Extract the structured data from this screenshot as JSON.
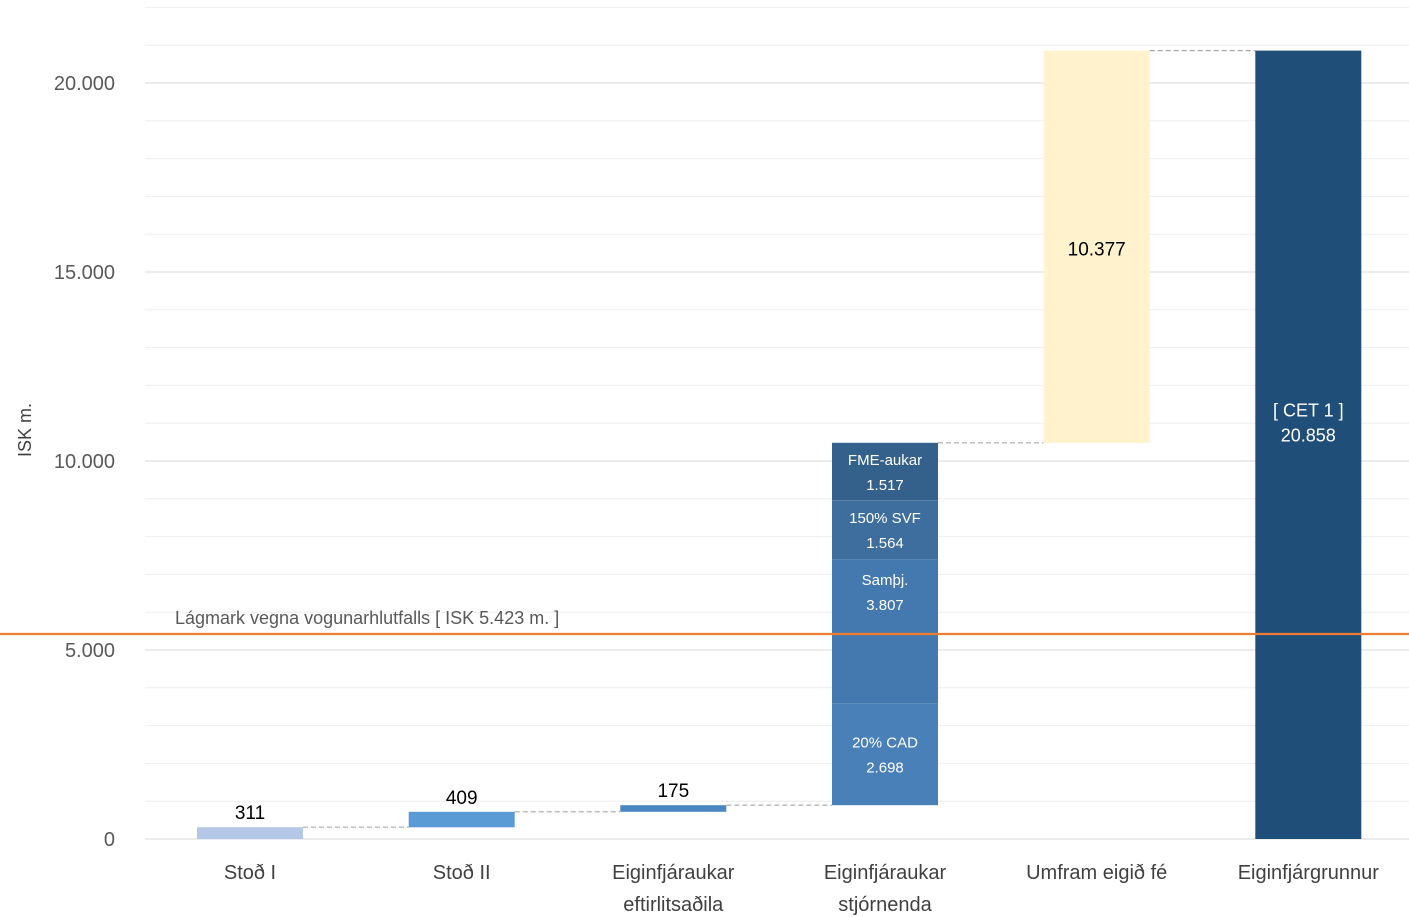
{
  "chart_data": {
    "type": "bar",
    "subtype": "waterfall-stacked",
    "title": "",
    "xlabel": "",
    "ylabel": "ISK m.",
    "ylim": [
      0,
      22000
    ],
    "yticks": [
      0,
      5000,
      10000,
      15000,
      20000
    ],
    "ytick_labels": [
      "0",
      "5.000",
      "10.000",
      "15.000",
      "20.000"
    ],
    "grid": {
      "major": true,
      "minor": true
    },
    "categories": [
      {
        "lines": [
          "Stoð I"
        ]
      },
      {
        "lines": [
          "Stoð II"
        ]
      },
      {
        "lines": [
          "Eiginfjáraukar",
          "eftirlitsaðila"
        ]
      },
      {
        "lines": [
          "Eiginfjáraukar",
          "stjórnenda"
        ]
      },
      {
        "lines": [
          "Umfram eigið fé"
        ]
      },
      {
        "lines": [
          "Eiginfjárgrunnur"
        ]
      }
    ],
    "bars": [
      {
        "category_index": 0,
        "base": 0,
        "segments": [
          {
            "value": 311,
            "color": "#B4C7E7",
            "label_lines": [
              "311"
            ],
            "label_position": "above"
          }
        ]
      },
      {
        "category_index": 1,
        "base": 311,
        "segments": [
          {
            "value": 409,
            "color": "#5B9BD5",
            "label_lines": [
              "409"
            ],
            "label_position": "above"
          }
        ]
      },
      {
        "category_index": 2,
        "base": 720,
        "segments": [
          {
            "value": 175,
            "color": "#4A86C1",
            "label_lines": [
              "175"
            ],
            "label_position": "above"
          }
        ]
      },
      {
        "category_index": 3,
        "base": 895,
        "segments": [
          {
            "value": 2698,
            "color": "#4A80B8",
            "label_lines": [
              "20% CAD",
              "2.698"
            ],
            "label_position": "inside"
          },
          {
            "value": 3807,
            "color": "#4479AF",
            "label_lines": [
              "Samþj.",
              "3.807"
            ],
            "label_position": "inside-top"
          },
          {
            "value": 1564,
            "color": "#3D6E9E",
            "label_lines": [
              "150% SVF",
              "1.564"
            ],
            "label_position": "inside"
          },
          {
            "value": 1517,
            "color": "#34618C",
            "label_lines": [
              "FME-aukar",
              "1.517"
            ],
            "label_position": "inside"
          }
        ]
      },
      {
        "category_index": 4,
        "base": 10481,
        "segments": [
          {
            "value": 10377,
            "color": "#FFF2CC",
            "label_lines": [
              "10.377"
            ],
            "label_position": "inside-upper"
          }
        ]
      },
      {
        "category_index": 5,
        "base": 0,
        "segments": [
          {
            "value": 20858,
            "color": "#1F4E79",
            "label_lines": [
              "[ CET 1 ]",
              "20.858"
            ],
            "label_position": "inside-upper"
          }
        ]
      }
    ],
    "reference_line": {
      "value": 5423,
      "color": "#ED7D31",
      "label": "Lágmark vegna vogunarhlutfalls [ ISK 5.423 m. ]"
    },
    "colors": {
      "connector": "#A6A6A6",
      "major_grid": "#D9D9D9",
      "minor_grid": "#EEEEEE"
    }
  }
}
